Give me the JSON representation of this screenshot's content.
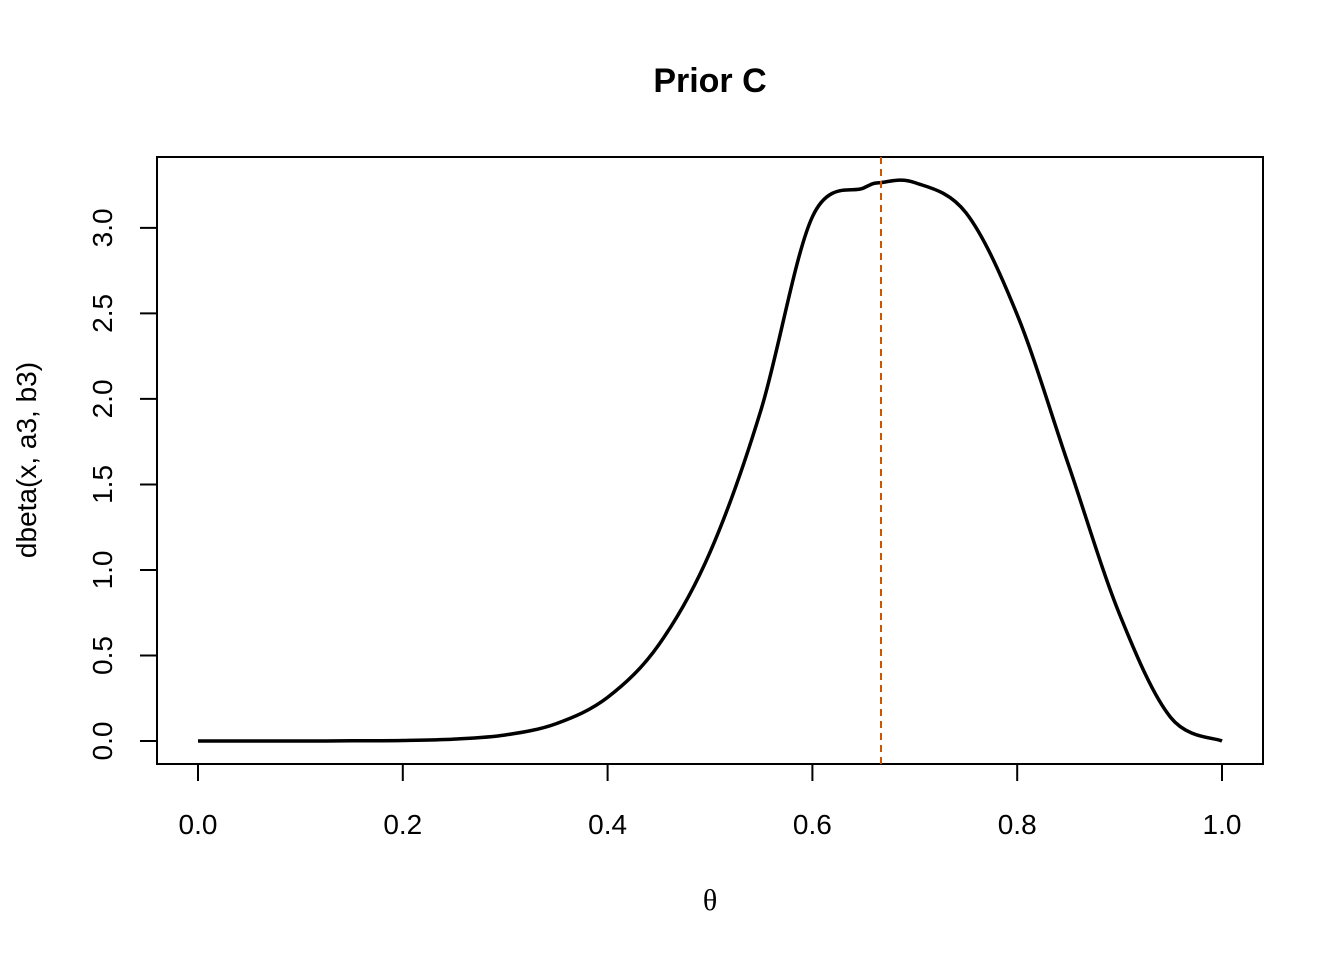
{
  "chart_data": {
    "type": "line",
    "title": "Prior C",
    "xlabel": "θ",
    "ylabel": "dbeta(x, a3, b3)",
    "xlim": [
      0.0,
      1.0
    ],
    "ylim": [
      0.0,
      3.28
    ],
    "x_ticks": [
      "0.0",
      "0.2",
      "0.4",
      "0.6",
      "0.8",
      "1.0"
    ],
    "y_ticks": [
      "0.0",
      "0.5",
      "1.0",
      "1.5",
      "2.0",
      "2.5",
      "3.0"
    ],
    "grid": false,
    "series": [
      {
        "color": "#000000",
        "x": [
          0.0,
          0.05,
          0.1,
          0.15,
          0.2,
          0.25,
          0.3,
          0.35,
          0.4,
          0.45,
          0.5,
          0.55,
          0.6,
          0.65,
          0.667,
          0.7,
          0.75,
          0.8,
          0.85,
          0.9,
          0.95,
          1.0
        ],
        "y": [
          0.0,
          0.0,
          0.0,
          0.001,
          0.003,
          0.011,
          0.035,
          0.102,
          0.255,
          0.563,
          1.103,
          1.94,
          3.065,
          3.233,
          3.265,
          3.265,
          3.088,
          2.492,
          1.616,
          0.74,
          0.137,
          0.0
        ]
      }
    ],
    "vline": {
      "x": 0.667,
      "color": "#cc5500",
      "style": "dashed"
    }
  }
}
